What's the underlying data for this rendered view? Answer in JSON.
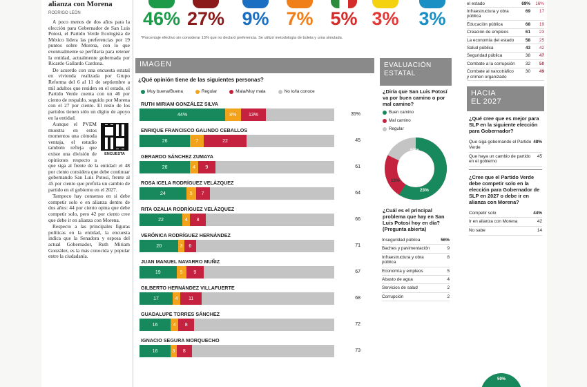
{
  "article": {
    "headline": "alianza con Morena",
    "byline": "RODRIGO LEÓN",
    "paragraphs": [
      "A poco menos de dos años para la elección para Gobernador de San Luis Potosí, el Partido Verde Ecologista de México lidera las preferencias por 19 puntos sobre Morena, con lo que eventualmente se perfilaría para retener la entidad, actualmente gobernada por Ricardo Gallardo Cardona.",
      "De acuerdo con una encuesta estatal en vivienda realizada por Grupo Reforma del 6 al 11 de septiembre a mil adultos que residen en el estado, el Partido Verde cuenta con un 46 por ciento de respaldo, seguido por Morena con el 27 por ciento. El resto de los partidos tienen sólo un dígito de apoyo en la entidad.",
      "Aunque el PVEM muestra en estos momentos una cómoda ventaja, el estudio también refleja que existe una división de opiniones respecto a que siga al frente de la entidad: el 48 por ciento considera que debe continuar gobernando San Luis Potosí, frente al 45 por ciento que prefiría un cambio de partido en el gobierno en el 2027.",
      "Tampoco hay consenso en si debe competir solo o en alianza dentro de dos años: 44 por ciento opina que debe competir solo, pero 42 por ciento cree que debe ir en alianza con Morena.",
      "Respecto a las principales figuras políticas en la entidad, la encuesta indica que la Senadora y esposa del actual Gobernador, Ruth Miriam González, es la más conocida y popular entre la ciudadanía."
    ],
    "qr_label": "ENCUESTA"
  },
  "top_results": {
    "parties": [
      {
        "pct": "46%",
        "color": "#1c9a4a",
        "logo": "#1c9a4a",
        "logo_text": "verde"
      },
      {
        "pct": "27%",
        "color": "#8b1a1a",
        "logo": "#8b1a1a",
        "logo_text": ""
      },
      {
        "pct": "9%",
        "color": "#1b6fc2",
        "logo": "#1b6fc2",
        "logo_text": "PAN"
      },
      {
        "pct": "7%",
        "color": "#f07f1a",
        "logo": "#f07f1a",
        "logo_text": ""
      },
      {
        "pct": "5%",
        "color": "#d42b2b",
        "logo": "#2e8b3e",
        "logo_text": ""
      },
      {
        "pct": "3%",
        "color": "#e23838",
        "logo": "#f5d20f",
        "logo_text": "PT"
      },
      {
        "pct": "3%",
        "color": "#1a8fc4",
        "logo": "#1a8fc4",
        "logo_text": "alianza"
      }
    ],
    "note": "*Porcentaje efectivo sin considerar 13% que no declaró preferencia. Se utilizó metodología de boleta y urna simulada."
  },
  "imagen": {
    "title": "IMAGEN",
    "question": "¿Qué opinión tiene de las siguientes personas?",
    "legend": {
      "good": "Muy buena/Buena",
      "regular": "Regular",
      "bad": "Mala/Muy mala",
      "unknown": "No lo/la conoce"
    },
    "people": [
      {
        "name": "RUTH MIRIAM GONZÁLEZ SILVA",
        "good": "44%",
        "regular": "8%",
        "bad": "13%",
        "unknown": "35%"
      },
      {
        "name": "ENRIQUE FRANCISCO GALINDO CEBALLOS",
        "good": "26",
        "regular": "7",
        "bad": "22",
        "unknown": "45"
      },
      {
        "name": "GERARDO SÁNCHEZ ZUMAYA",
        "good": "26",
        "regular": "4",
        "bad": "9",
        "unknown": "61"
      },
      {
        "name": "ROSA ICELA RODRÍGUEZ VELÁZQUEZ",
        "good": "24",
        "regular": "5",
        "bad": "7",
        "unknown": "64"
      },
      {
        "name": "RITA OZALIA RODRÍGUEZ VELÁZQUEZ",
        "good": "22",
        "regular": "4",
        "bad": "8",
        "unknown": "66"
      },
      {
        "name": "VERÓNICA RODRÍGUEZ HERNÁNDEZ",
        "good": "20",
        "regular": "3",
        "bad": "6",
        "unknown": "71"
      },
      {
        "name": "JUAN MANUEL NAVARRO MUÑIZ",
        "good": "19",
        "regular": "5",
        "bad": "9",
        "unknown": "67"
      },
      {
        "name": "GILBERTO HERNÁNDEZ VILLAFUERTE",
        "good": "17",
        "regular": "4",
        "bad": "11",
        "unknown": "68"
      },
      {
        "name": "GUADALUPE TORRES SÁNCHEZ",
        "good": "16",
        "regular": "4",
        "bad": "8",
        "unknown": "72"
      },
      {
        "name": "IGNACIO SEGURA MORQUECHO",
        "good": "16",
        "regular": "3",
        "bad": "8",
        "unknown": "73"
      }
    ]
  },
  "evaluacion": {
    "title_line1": "EVALUACIÓN",
    "title_line2": "ESTATAL",
    "question": "¿Diría que San Luis Potosí va por buen camino o por mal camino?",
    "legend": {
      "good": "Buen camino",
      "bad": "Mal camino",
      "regular": "Regular"
    },
    "donut": {
      "good": "59%",
      "bad": "23%",
      "regular": "13%"
    },
    "problem_question": "¿Cuál es el principal problema que hay en San Luis Potosí hoy en día? (Pregunta abierta)",
    "problems": [
      {
        "label": "Inseguridad pública",
        "value": "56%"
      },
      {
        "label": "Baches y pavimentación",
        "value": "9"
      },
      {
        "label": "Infraestructura y obra pública",
        "value": "8"
      },
      {
        "label": "Economía y empleos",
        "value": "5"
      },
      {
        "label": "Abasto de agua",
        "value": "4"
      },
      {
        "label": "Servicios de salud",
        "value": "2"
      },
      {
        "label": "Corrupción",
        "value": "2"
      }
    ]
  },
  "right_table": {
    "rows": [
      {
        "label": "el estado",
        "a": "69%",
        "b": "16%"
      },
      {
        "label": "Infraestructura y obra pública",
        "a": "69",
        "b": "17"
      },
      {
        "label": "Educación pública",
        "a": "68",
        "b": "19"
      },
      {
        "label": "Creación de empleos",
        "a": "61",
        "b": "23"
      },
      {
        "label": "La economía del estado",
        "a": "58",
        "b": "25"
      },
      {
        "label": "Salud pública",
        "a": "43",
        "b": "42"
      },
      {
        "label": "Seguridad pública",
        "a": "38",
        "b": "47"
      },
      {
        "label": "Combate a la corrupción",
        "a": "32",
        "b": "50"
      },
      {
        "label": "Combate al narcotráfico y crimen organizado",
        "a": "30",
        "b": "49"
      }
    ]
  },
  "hacia": {
    "title_line1": "HACIA",
    "title_line2": "EL 2027",
    "q1": "¿Qué cree que es mejor para SLP en la siguiente elección para Gobernador?",
    "q1_rows": [
      {
        "label": "Que siga gobernando el Partido Verde",
        "value": "48%"
      },
      {
        "label": "Que haya un cambio de partido en el gobierno",
        "value": "45"
      }
    ],
    "q2": "¿Cree que el Partido Verde debe competir solo en la elección para Gobernador de SLP en 2027 o debe ir en alianza con Morena?",
    "q2_rows": [
      {
        "label": "Competir solo",
        "value": "44%"
      },
      {
        "label": "Ir en alianza con Morena",
        "value": "42"
      },
      {
        "label": "No sabe",
        "value": "14"
      }
    ],
    "partial_value": "59%"
  }
}
